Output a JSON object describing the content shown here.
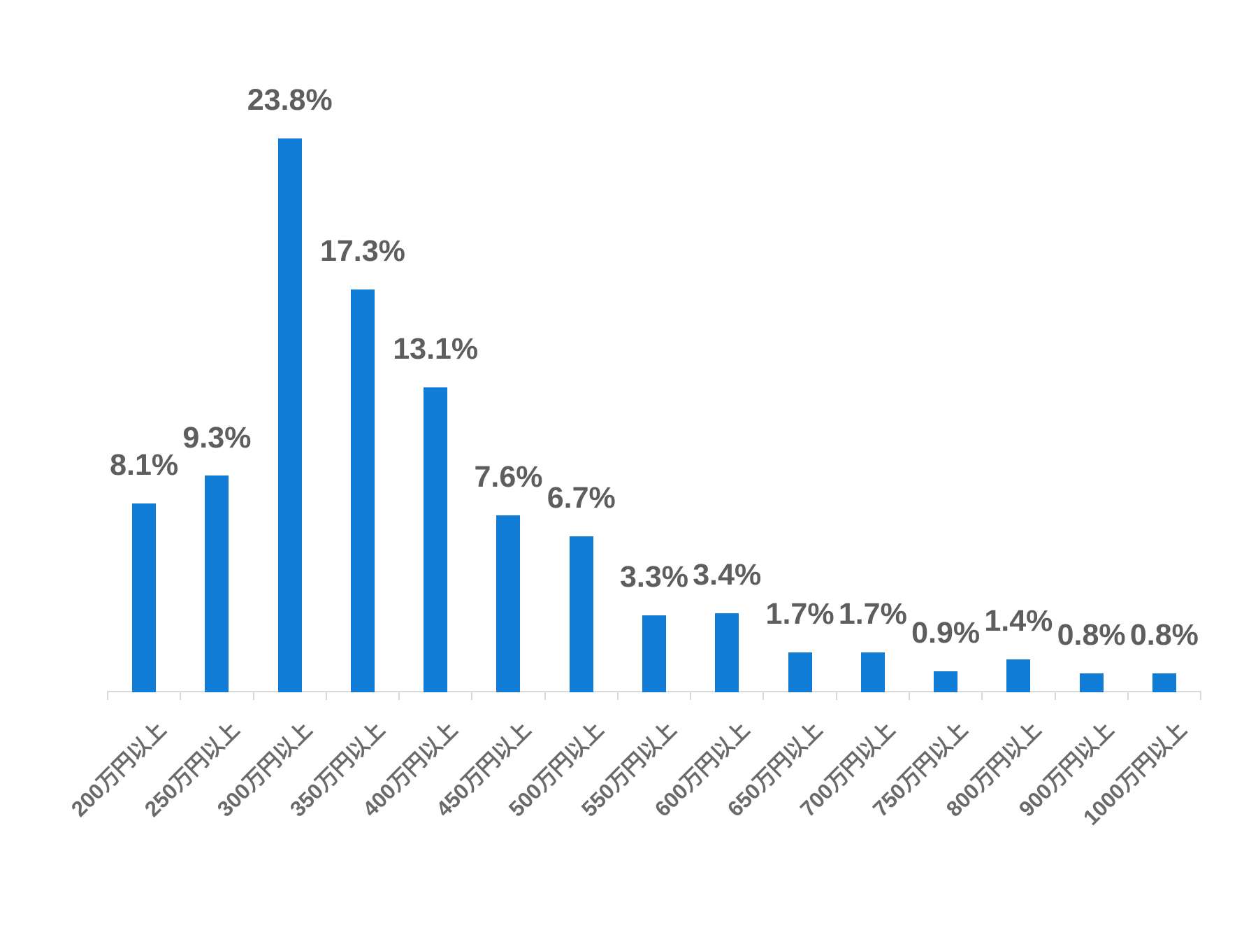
{
  "chart_data": {
    "type": "bar",
    "title": "",
    "xlabel": "",
    "ylabel": "",
    "categories": [
      "200万円以上",
      "250万円以上",
      "300万円以上",
      "350万円以上",
      "400万円以上",
      "450万円以上",
      "500万円以上",
      "550万円以上",
      "600万円以上",
      "650万円以上",
      "700万円以上",
      "750万円以上",
      "800万円以上",
      "900万円以上",
      "1000万円以上"
    ],
    "values": [
      8.1,
      9.3,
      23.8,
      17.3,
      13.1,
      7.6,
      6.7,
      3.3,
      3.4,
      1.7,
      1.7,
      0.9,
      1.4,
      0.8,
      0.8
    ],
    "value_labels": [
      "8.1%",
      "9.3%",
      "23.8%",
      "17.3%",
      "13.1%",
      "7.6%",
      "6.7%",
      "3.3%",
      "3.4%",
      "1.7%",
      "1.7%",
      "0.9%",
      "1.4%",
      "0.8%",
      "0.8%"
    ],
    "ylim": [
      0,
      25
    ],
    "grid": false,
    "legend": null,
    "colors": {
      "bar": "#107CD6",
      "value_label": "#5E5E5E",
      "x_tick_label": "#6A6A6A",
      "axis": "#D9D9D9"
    }
  }
}
